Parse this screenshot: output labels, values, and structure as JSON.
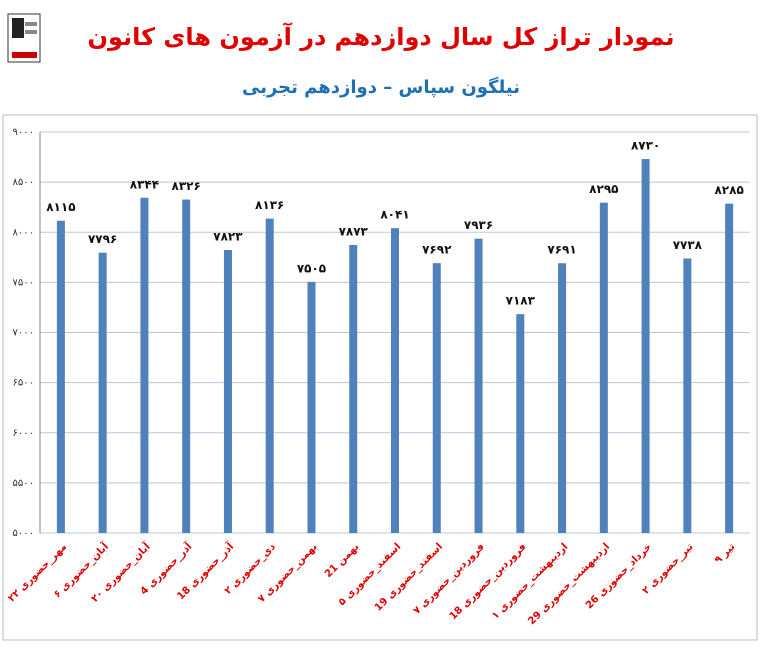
{
  "chart_data": {
    "type": "bar",
    "title": "نمودار تراز کل سال دوازدهم در آزمون های کانون",
    "subtitle": "نیلگون سپاس – دوازدهم تجربی",
    "categories": [
      "۲۲ مهر_حضوری",
      "۶ آبان_حضوری",
      "۲۰ آبان_حضوری",
      "4 آذر_حضوری",
      "18 آذر_حضوری",
      "۲ دی_حضوری",
      "۷ بهمن_حضوری",
      "21 بهمن",
      "۵ اسفند_حضوری",
      "19 اسفند_حضوری",
      "۷ فروردین_حضوری",
      "18 فروردین_حضوری",
      "۱ اردیبهشت_حضوری",
      "29 اردیبهشت_حضوری",
      "26 خرداد_حضوری",
      "۲ تیر_حضوری",
      "۹ تیر"
    ],
    "values": [
      8115,
      7796,
      8344,
      8326,
      7823,
      8136,
      7505,
      7873,
      8041,
      7692,
      7936,
      7183,
      7691,
      8295,
      8730,
      7738,
      8285
    ],
    "value_labels": [
      "۸۱۱۵",
      "۷۷۹۶",
      "۸۳۴۴",
      "۸۳۲۶",
      "۷۸۲۳",
      "۸۱۳۶",
      "۷۵۰۵",
      "۷۸۷۳",
      "۸۰۴۱",
      "۷۶۹۲",
      "۷۹۳۶",
      "۷۱۸۳",
      "۷۶۹۱",
      "۸۲۹۵",
      "۸۷۳۰",
      "۷۷۳۸",
      "۸۲۸۵"
    ],
    "color": "#4f81bd",
    "ylim": [
      5000,
      9000
    ],
    "yticks": [
      {
        "value": 5000,
        "label": "۵۰۰۰"
      },
      {
        "value": 5500,
        "label": "۵۵۰۰"
      },
      {
        "value": 6000,
        "label": "۶۰۰۰"
      },
      {
        "value": 6500,
        "label": "۶۵۰۰"
      },
      {
        "value": 7000,
        "label": "۷۰۰۰"
      },
      {
        "value": 7500,
        "label": "۷۵۰۰"
      },
      {
        "value": 8000,
        "label": "۸۰۰۰"
      },
      {
        "value": 8500,
        "label": "۸۵۰۰"
      },
      {
        "value": 9000,
        "label": "۹۰۰۰"
      }
    ],
    "grid": true
  }
}
